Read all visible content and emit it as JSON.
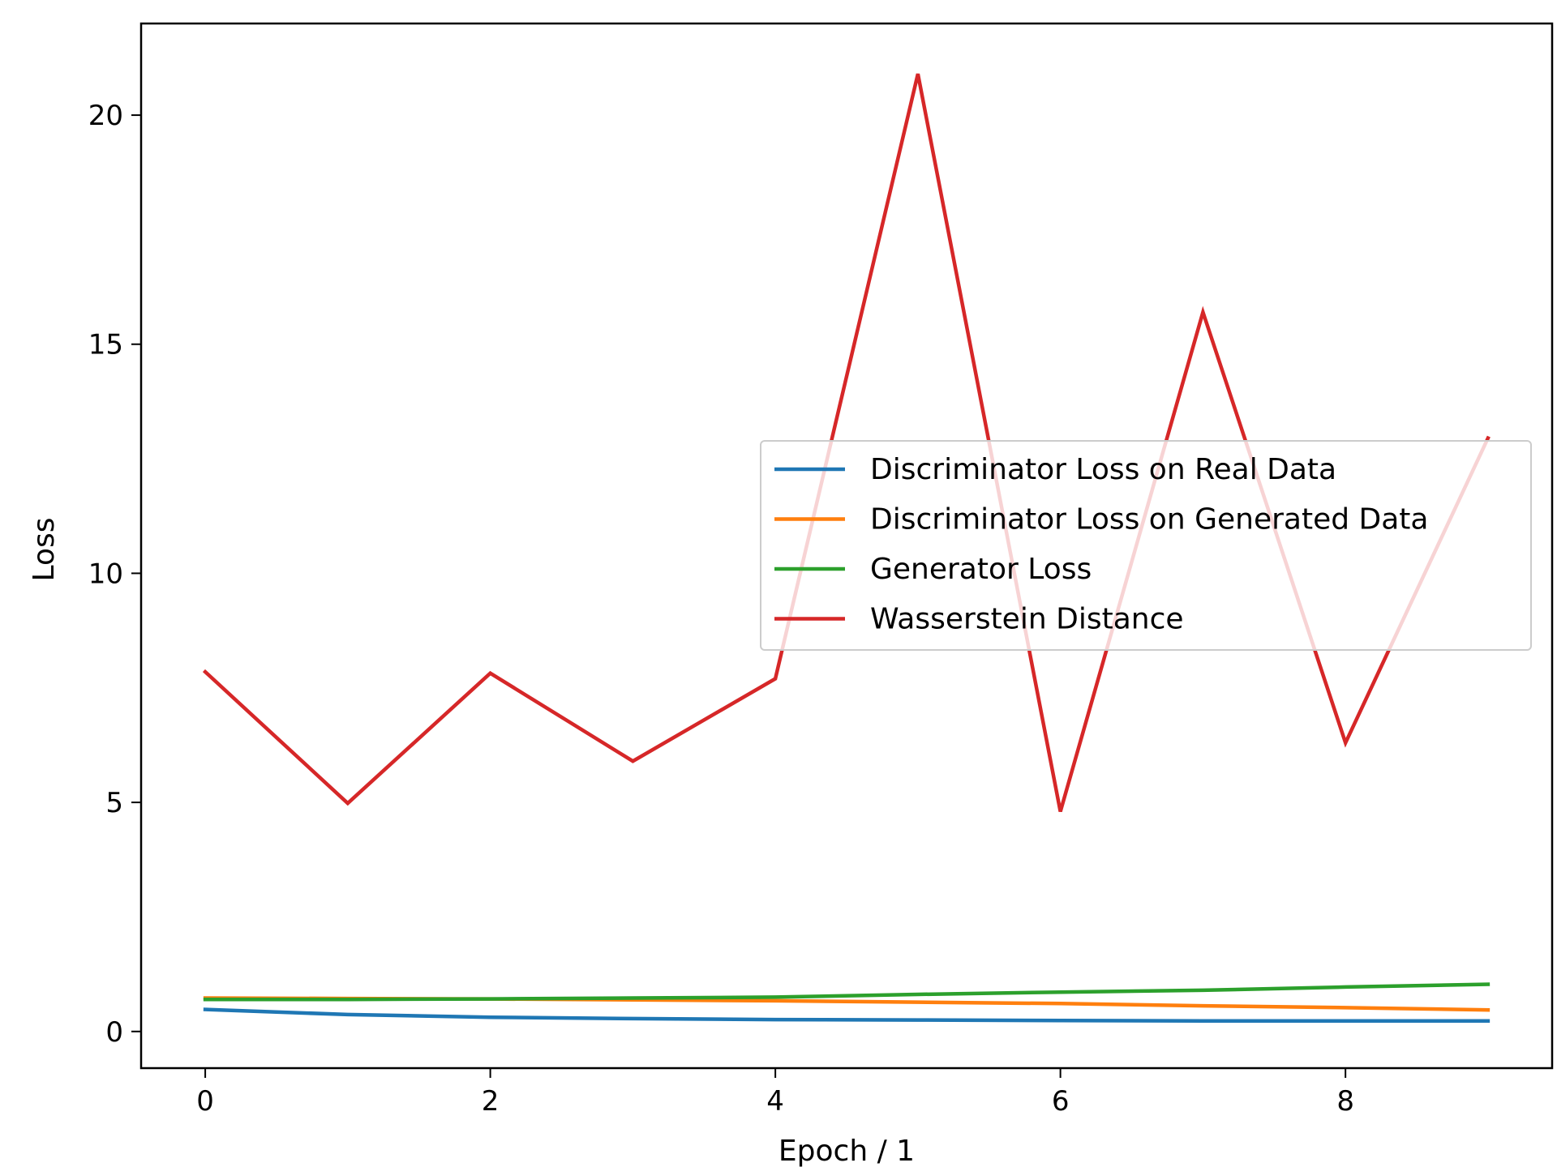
{
  "chart_data": {
    "type": "line",
    "title": "",
    "xlabel": "Epoch / 1",
    "ylabel": "Loss",
    "xlim": [
      -0.45,
      9.45
    ],
    "ylim": [
      -0.8,
      22.0
    ],
    "x_ticks": [
      0,
      2,
      4,
      6,
      8
    ],
    "y_ticks": [
      0,
      5,
      10,
      15,
      20
    ],
    "grid": false,
    "legend_position": "center-right",
    "x": [
      0,
      1,
      2,
      3,
      4,
      5,
      6,
      7,
      8,
      9
    ],
    "series": [
      {
        "name": "Discriminator Loss on Real Data",
        "color": "#1f77b4",
        "values": [
          0.48,
          0.37,
          0.31,
          0.28,
          0.26,
          0.25,
          0.24,
          0.23,
          0.23,
          0.23
        ]
      },
      {
        "name": "Discriminator Loss on Generated Data",
        "color": "#ff7f0e",
        "values": [
          0.73,
          0.72,
          0.71,
          0.69,
          0.67,
          0.64,
          0.61,
          0.56,
          0.52,
          0.47
        ]
      },
      {
        "name": "Generator Loss",
        "color": "#2ca02c",
        "values": [
          0.7,
          0.7,
          0.71,
          0.73,
          0.75,
          0.81,
          0.86,
          0.9,
          0.97,
          1.03
        ]
      },
      {
        "name": "Wasserstein Distance",
        "color": "#d62728",
        "values": [
          7.85,
          4.98,
          7.82,
          5.9,
          7.7,
          20.9,
          4.8,
          15.7,
          6.3,
          12.95
        ]
      }
    ]
  }
}
